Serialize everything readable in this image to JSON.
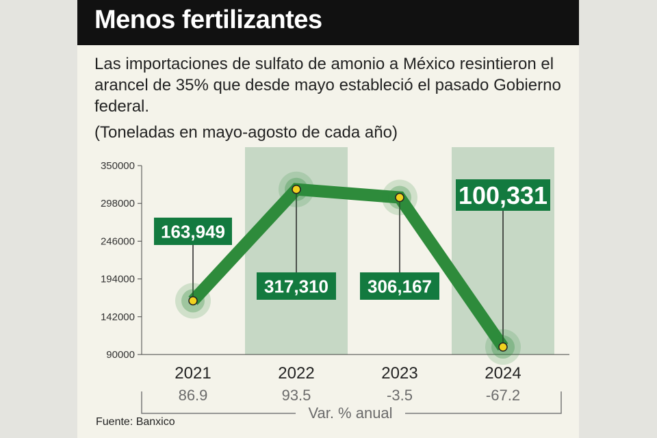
{
  "header": {
    "title": "Menos fertilizantes",
    "subtitle": "Las importaciones de sulfato de amonio a México resintieron el arancel de 35% que desde mayo estableció el pasado Gobierno federal.",
    "unit_note": "(Toneladas en mayo-agosto de cada año)"
  },
  "footer": {
    "source": "Fuente: Banxico"
  },
  "colors": {
    "line": "#2e8b3b",
    "label_bg": "#137a3f",
    "highlight": "#c6d8c5",
    "point": "#f0d21f"
  },
  "chart_data": {
    "type": "line",
    "categories": [
      "2021",
      "2022",
      "2023",
      "2024"
    ],
    "values": [
      163949,
      317310,
      306167,
      100331
    ],
    "value_labels": [
      "163,949",
      "317,310",
      "306,167",
      "100,331"
    ],
    "var_pct": [
      "86.9",
      "93.5",
      "-3.5",
      "-67.2"
    ],
    "var_label": "Var. % anual",
    "yticks": [
      "350000",
      "298000",
      "246000",
      "194000",
      "142000",
      "90000"
    ],
    "ylim": [
      90000,
      350000
    ],
    "highlighted": [
      "2022",
      "2024"
    ],
    "grid": false,
    "legend": "none"
  }
}
